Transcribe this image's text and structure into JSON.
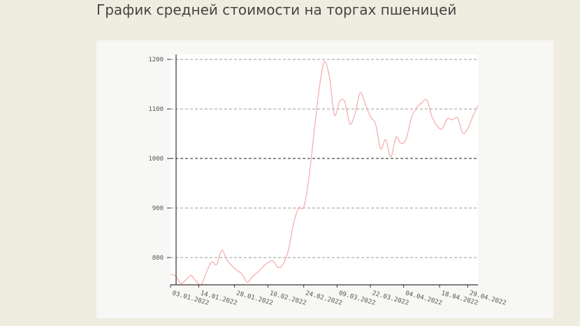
{
  "page": {
    "title": "График средней стоимости на торгах пшеницей"
  },
  "colors": {
    "background": "#efece0",
    "card": "#f7f7f5",
    "plot": "#ffffff",
    "line": "#f4a9a9",
    "grid": "#999999",
    "grid_strong": "#222222",
    "axis": "#333333"
  },
  "chart_data": {
    "type": "line",
    "title": "",
    "xlabel": "",
    "ylabel": "",
    "xlim": [
      "2022-01-03",
      "2022-05-03"
    ],
    "ylim": [
      745,
      1210
    ],
    "yticks": [
      800,
      900,
      1000,
      1100,
      1200
    ],
    "ytick_labels": [
      "800",
      "900",
      "1000",
      "1100",
      "1200"
    ],
    "highlighted_ytick": 1000,
    "xticks": [
      "2022-01-03",
      "2022-01-14",
      "2022-01-28",
      "2022-02-10",
      "2022-02-24",
      "2022-03-09",
      "2022-03-22",
      "2022-04-04",
      "2022-04-18",
      "2022-04-29"
    ],
    "xtick_labels": [
      "03.01.2022",
      "14.01.2022",
      "28.01.2022",
      "10.02.2022",
      "24.02.2022",
      "09.03.2022",
      "22.03.2022",
      "04.04.2022",
      "18.04.2022",
      "29.04.2022"
    ],
    "grid": "horizontal dashed",
    "legend": "none",
    "series": [
      {
        "color": "#f4a9a9",
        "x": [
          "2022-01-03",
          "2022-01-05",
          "2022-01-07",
          "2022-01-09",
          "2022-01-11",
          "2022-01-13",
          "2022-01-15",
          "2022-01-17",
          "2022-01-19",
          "2022-01-21",
          "2022-01-23",
          "2022-01-25",
          "2022-01-27",
          "2022-01-29",
          "2022-01-31",
          "2022-02-02",
          "2022-02-04",
          "2022-02-06",
          "2022-02-08",
          "2022-02-10",
          "2022-02-12",
          "2022-02-14",
          "2022-02-16",
          "2022-02-18",
          "2022-02-20",
          "2022-02-22",
          "2022-02-24",
          "2022-02-26",
          "2022-02-28",
          "2022-03-02",
          "2022-03-04",
          "2022-03-06",
          "2022-03-08",
          "2022-03-10",
          "2022-03-12",
          "2022-03-14",
          "2022-03-16",
          "2022-03-18",
          "2022-03-20",
          "2022-03-22",
          "2022-03-24",
          "2022-03-26",
          "2022-03-28",
          "2022-03-30",
          "2022-04-01",
          "2022-04-03",
          "2022-04-05",
          "2022-04-07",
          "2022-04-09",
          "2022-04-11",
          "2022-04-13",
          "2022-04-15",
          "2022-04-17",
          "2022-04-19",
          "2022-04-21",
          "2022-04-23",
          "2022-04-25",
          "2022-04-27",
          "2022-04-29",
          "2022-05-01",
          "2022-05-03"
        ],
        "y": [
          766,
          763,
          748,
          755,
          764,
          752,
          746,
          770,
          791,
          786,
          815,
          796,
          783,
          774,
          766,
          750,
          762,
          770,
          781,
          790,
          793,
          780,
          787,
          815,
          868,
          900,
          902,
          960,
          1050,
          1140,
          1195,
          1165,
          1088,
          1115,
          1115,
          1070,
          1090,
          1133,
          1110,
          1085,
          1070,
          1020,
          1038,
          1003,
          1043,
          1030,
          1040,
          1082,
          1102,
          1112,
          1118,
          1085,
          1066,
          1060,
          1080,
          1078,
          1082,
          1052,
          1060,
          1085,
          1107
        ]
      }
    ]
  }
}
